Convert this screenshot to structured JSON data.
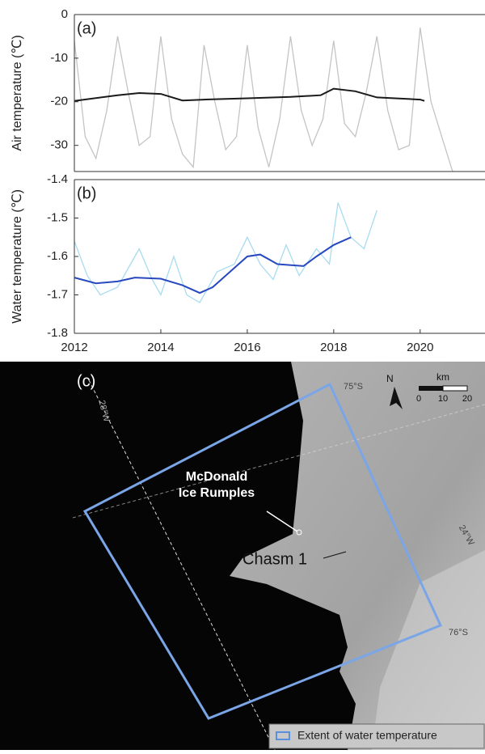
{
  "chart_data": [
    {
      "type": "line",
      "label": "(a)",
      "y_label": "Air temperature (℃)",
      "xlim": [
        2012,
        2021.5
      ],
      "ylim": [
        -36,
        0
      ],
      "yticks": [
        0,
        -10,
        -20,
        -30
      ],
      "series": [
        {
          "color": "#c4c4c4",
          "x": [
            2012.0,
            2012.25,
            2012.5,
            2012.75,
            2013.0,
            2013.25,
            2013.5,
            2013.75,
            2014.0,
            2014.25,
            2014.5,
            2014.75,
            2015.0,
            2015.25,
            2015.5,
            2015.75,
            2016.0,
            2016.25,
            2016.5,
            2016.75,
            2017.0,
            2017.25,
            2017.5,
            2017.75,
            2018.0,
            2018.25,
            2018.5,
            2018.75,
            2019.0,
            2019.25,
            2019.5,
            2019.75,
            2020.0,
            2020.25,
            2020.5,
            2020.75
          ],
          "values": [
            -6,
            -28,
            -33,
            -22,
            -5,
            -18,
            -30,
            -28,
            -5,
            -24,
            -32,
            -35,
            -7,
            -20,
            -31,
            -28,
            -7,
            -26,
            -35,
            -24,
            -5,
            -22,
            -30,
            -24,
            -6,
            -25,
            -28,
            -18,
            -5,
            -22,
            -31,
            -30,
            -3,
            -20,
            -28,
            -36
          ]
        },
        {
          "color": "#1a1a1a",
          "x": [
            2012.0,
            2013.0,
            2013.5,
            2014.0,
            2014.5,
            2015.0,
            2016.0,
            2017.0,
            2017.7,
            2018.0,
            2018.5,
            2019.0,
            2020.0,
            2020.1
          ],
          "values": [
            -19.8,
            -18.5,
            -18,
            -18.2,
            -19.7,
            -19.5,
            -19.2,
            -18.9,
            -18.5,
            -17,
            -17.6,
            -19,
            -19.5,
            -19.8
          ]
        }
      ]
    },
    {
      "type": "line",
      "label": "(b)",
      "y_label": "Water temperature (℃)",
      "xlim": [
        2012,
        2021.5
      ],
      "ylim": [
        -1.8,
        -1.4
      ],
      "yticks": [
        -1.4,
        -1.5,
        -1.6,
        -1.7,
        -1.8
      ],
      "xticks": [
        2012,
        2014,
        2016,
        2018,
        2020
      ],
      "series": [
        {
          "color": "#a8dcf0",
          "x": [
            2012.0,
            2012.3,
            2012.6,
            2013.0,
            2013.5,
            2013.8,
            2014.0,
            2014.3,
            2014.6,
            2014.9,
            2015.3,
            2015.7,
            2016.0,
            2016.3,
            2016.6,
            2016.9,
            2017.2,
            2017.6,
            2017.9,
            2018.1,
            2018.4,
            2018.7,
            2019.0
          ],
          "values": [
            -1.56,
            -1.65,
            -1.7,
            -1.68,
            -1.58,
            -1.66,
            -1.7,
            -1.6,
            -1.7,
            -1.72,
            -1.64,
            -1.62,
            -1.55,
            -1.62,
            -1.66,
            -1.57,
            -1.65,
            -1.58,
            -1.62,
            -1.46,
            -1.55,
            -1.58,
            -1.48
          ]
        },
        {
          "color": "#2848c0",
          "x": [
            2012.0,
            2012.5,
            2013.0,
            2013.4,
            2014.0,
            2014.5,
            2014.9,
            2015.2,
            2015.6,
            2016.0,
            2016.3,
            2016.7,
            2017.3,
            2017.6,
            2018.0,
            2018.4
          ],
          "values": [
            -1.655,
            -1.67,
            -1.665,
            -1.655,
            -1.658,
            -1.675,
            -1.695,
            -1.68,
            -1.64,
            -1.6,
            -1.595,
            -1.62,
            -1.625,
            -1.6,
            -1.57,
            -1.55
          ]
        }
      ]
    }
  ],
  "map": {
    "label": "(c)",
    "rumples": [
      "McDonald",
      "Ice Rumples"
    ],
    "chasm": "Chasm 1",
    "latitudes": [
      "75°S",
      "76°S"
    ],
    "longitudes": [
      "28°W",
      "24°W"
    ],
    "north": "N",
    "scale_unit": "km",
    "scale_ticks": [
      "0",
      "10",
      "20"
    ],
    "legend": "Extent of water temperature"
  }
}
